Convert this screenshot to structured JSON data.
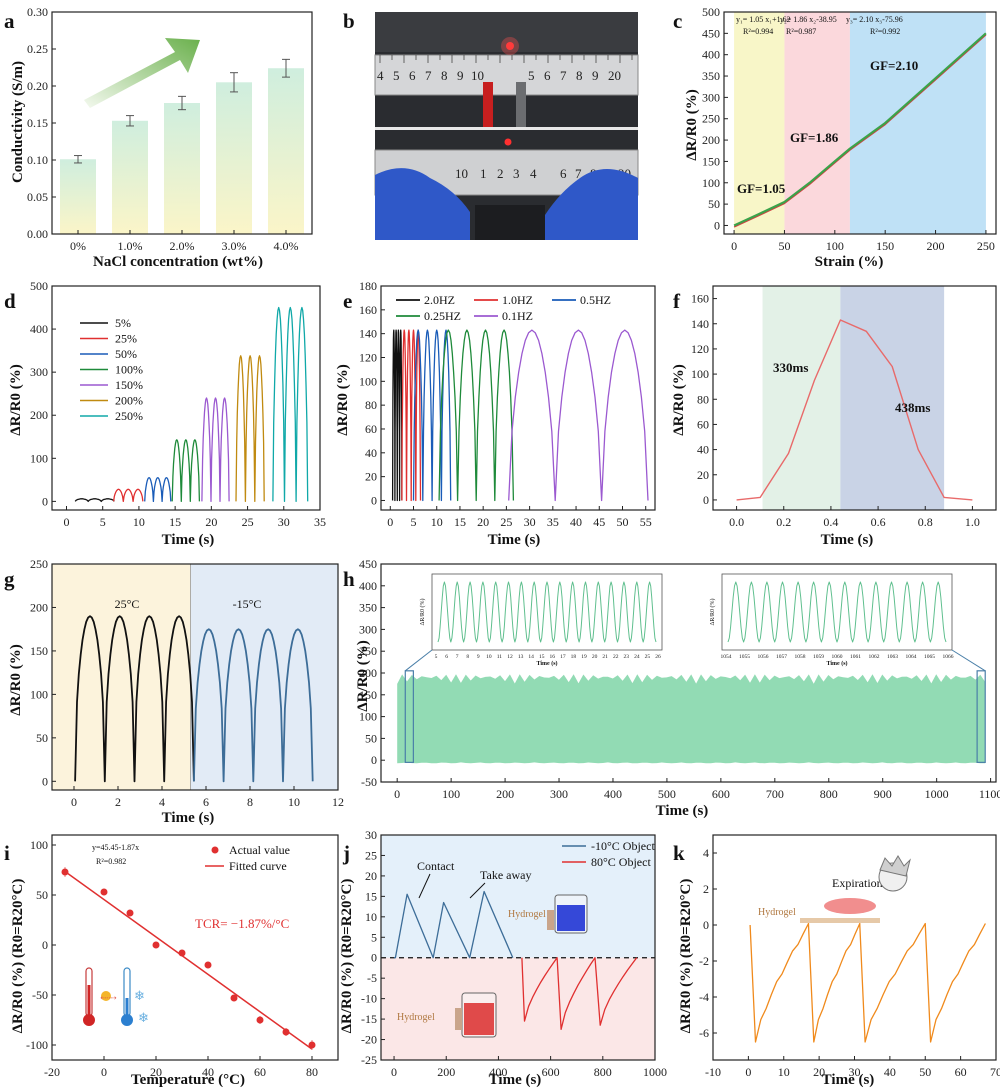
{
  "panel_labels": {
    "a": "a",
    "b": "b",
    "c": "c",
    "d": "d",
    "e": "e",
    "f": "f",
    "g": "g",
    "h": "h",
    "i": "i",
    "j": "j",
    "k": "k"
  },
  "chart_data": [
    {
      "panel": "a",
      "type": "bar",
      "categories": [
        "0%",
        "1.0%",
        "2.0%",
        "3.0%",
        "4.0%"
      ],
      "values": [
        0.101,
        0.153,
        0.177,
        0.205,
        0.224
      ],
      "errors": [
        0.005,
        0.007,
        0.009,
        0.013,
        0.012
      ],
      "xlabel": "NaCl concentration (wt%)",
      "ylabel": "Conductivity (S/m)",
      "ylim": [
        0.0,
        0.3
      ],
      "yticks": [
        "0.00",
        "0.05",
        "0.10",
        "0.15",
        "0.20",
        "0.25",
        "0.30"
      ],
      "colors": {
        "bar_top": "#cfeede",
        "bar_bottom": "#fbf5c8",
        "arrow": "#6ab04c",
        "error": "#555555"
      }
    },
    {
      "panel": "c",
      "type": "line",
      "x": [
        0,
        25,
        50,
        75,
        100,
        115,
        150,
        200,
        250
      ],
      "y": [
        0,
        27,
        55,
        100,
        150,
        180,
        240,
        345,
        450
      ],
      "xlabel": "Strain (%)",
      "ylabel": "ΔR/R0 (%)",
      "xlim": [
        -10,
        260
      ],
      "ylim": [
        -20,
        500
      ],
      "xticks": [
        "0",
        "50",
        "100",
        "150",
        "200",
        "250"
      ],
      "yticks": [
        "0",
        "50",
        "100",
        "150",
        "200",
        "250",
        "300",
        "350",
        "400",
        "450",
        "500"
      ],
      "regions": [
        {
          "x0": 0,
          "x1": 50,
          "color": "#f8f6c8"
        },
        {
          "x0": 50,
          "x1": 115,
          "color": "#fbd8dc"
        },
        {
          "x0": 115,
          "x1": 250,
          "color": "#bfe1f6"
        }
      ],
      "fits": [
        {
          "eq": "y₁= 1.05 x₁+1.62",
          "r2": "R²=0.994"
        },
        {
          "eq": "y₂= 1.86 x₂-38.95",
          "r2": "R²=0.987"
        },
        {
          "eq": "y₃= 2.10 x₃-75.96",
          "r2": "R²=0.992"
        }
      ],
      "gf_labels": [
        "GF=1.05",
        "GF=1.86",
        "GF=2.10"
      ],
      "colors": {
        "line": "#3aa34a",
        "line2": "#d04040"
      }
    },
    {
      "panel": "d",
      "type": "line",
      "xlabel": "Time (s)",
      "ylabel": "ΔR/R0 (%)",
      "xlim": [
        -2,
        35
      ],
      "ylim": [
        -20,
        500
      ],
      "xticks": [
        "0",
        "5",
        "10",
        "15",
        "20",
        "25",
        "30",
        "35"
      ],
      "yticks": [
        "0",
        "100",
        "200",
        "300",
        "400",
        "500"
      ],
      "series": [
        {
          "name": "5%",
          "amp": 6,
          "start": 1.2,
          "period": 1.8,
          "color": "#111111"
        },
        {
          "name": "25%",
          "amp": 28,
          "start": 6.5,
          "period": 1.35,
          "color": "#e03030"
        },
        {
          "name": "50%",
          "amp": 55,
          "start": 10.8,
          "period": 1.2,
          "color": "#1a5cb8"
        },
        {
          "name": "100%",
          "amp": 143,
          "start": 14.6,
          "period": 1.25,
          "color": "#1e8a3a"
        },
        {
          "name": "150%",
          "amp": 240,
          "start": 18.7,
          "period": 1.25,
          "color": "#9b59d0"
        },
        {
          "name": "200%",
          "amp": 338,
          "start": 23.4,
          "period": 1.3,
          "color": "#c08a10"
        },
        {
          "name": "250%",
          "amp": 450,
          "start": 28.5,
          "period": 1.6,
          "color": "#10a8a8"
        }
      ]
    },
    {
      "panel": "e",
      "type": "line",
      "xlabel": "Time (s)",
      "ylabel": "ΔR/R0 (%)",
      "xlim": [
        -2,
        57
      ],
      "ylim": [
        -8,
        180
      ],
      "xticks": [
        "0",
        "5",
        "10",
        "15",
        "20",
        "25",
        "30",
        "35",
        "40",
        "45",
        "50",
        "55"
      ],
      "yticks": [
        "0",
        "20",
        "40",
        "60",
        "80",
        "100",
        "120",
        "140",
        "160",
        "180"
      ],
      "series": [
        {
          "name": "2.0HZ",
          "freq": 2.0,
          "start": 0.5,
          "cycles": 4,
          "amp": 143,
          "color": "#111111"
        },
        {
          "name": "1.0HZ",
          "freq": 1.0,
          "start": 2.5,
          "cycles": 4,
          "amp": 143,
          "color": "#e03030"
        },
        {
          "name": "0.5HZ",
          "freq": 0.5,
          "start": 5.0,
          "cycles": 4,
          "amp": 143,
          "color": "#1a5cb8"
        },
        {
          "name": "0.25HZ",
          "freq": 0.25,
          "start": 10.5,
          "cycles": 4,
          "amp": 143,
          "color": "#1e8a3a"
        },
        {
          "name": "0.1HZ",
          "freq": 0.1,
          "start": 25.5,
          "cycles": 3,
          "amp": 143,
          "color": "#9b59d0"
        }
      ]
    },
    {
      "panel": "f",
      "type": "line",
      "x": [
        0.0,
        0.1,
        0.22,
        0.33,
        0.44,
        0.55,
        0.66,
        0.77,
        0.88,
        1.0
      ],
      "y": [
        0,
        2,
        37,
        95,
        143,
        134,
        106,
        40,
        2,
        0
      ],
      "xlabel": "Time (s)",
      "ylabel": "ΔR/R0 (%)",
      "xlim": [
        -0.1,
        1.1
      ],
      "ylim": [
        -8,
        170
      ],
      "xticks": [
        "0.0",
        "0.2",
        "0.4",
        "0.6",
        "0.8",
        "1.0"
      ],
      "yticks": [
        "0",
        "20",
        "40",
        "60",
        "80",
        "100",
        "120",
        "140",
        "160"
      ],
      "regions": [
        {
          "x0": 0.11,
          "x1": 0.44,
          "color": "#e3f1e7"
        },
        {
          "x0": 0.44,
          "x1": 0.88,
          "color": "#c9d3e6"
        }
      ],
      "annotations": [
        "330ms",
        "438ms"
      ],
      "colors": {
        "line": "#e86a6a"
      }
    },
    {
      "panel": "g",
      "type": "line",
      "xlabel": "Time (s)",
      "ylabel": "ΔR/R0 (%)",
      "xlim": [
        -1,
        12
      ],
      "ylim": [
        -10,
        250
      ],
      "xticks": [
        "0",
        "2",
        "4",
        "6",
        "8",
        "10",
        "12"
      ],
      "yticks": [
        "0",
        "50",
        "100",
        "150",
        "200",
        "250"
      ],
      "regions": [
        {
          "x0": -1,
          "x1": 5.3,
          "color": "#fcf3dc",
          "label": "25°C"
        },
        {
          "x0": 5.3,
          "x1": 12,
          "color": "#e2ebf6",
          "label": "-15°C"
        }
      ],
      "series": [
        {
          "start": 0.05,
          "period": 1.35,
          "cycles": 4,
          "amp": 190,
          "color": "#111111"
        },
        {
          "start": 5.45,
          "period": 1.35,
          "cycles": 4,
          "amp": 175,
          "color": "#3d6d98"
        }
      ]
    },
    {
      "panel": "h",
      "type": "area",
      "xlabel": "Time (s)",
      "ylabel": "ΔR/R0 (%)",
      "xlim": [
        -30,
        1110
      ],
      "ylim": [
        -50,
        450
      ],
      "xticks": [
        "0",
        "100",
        "200",
        "300",
        "400",
        "500",
        "600",
        "700",
        "800",
        "900",
        "1000",
        "1100"
      ],
      "yticks": [
        "-50",
        "0",
        "50",
        "100",
        "150",
        "200",
        "250",
        "300",
        "350",
        "400",
        "450"
      ],
      "band": {
        "x0": 0,
        "x1": 1090,
        "y0": -5,
        "y1": 200
      },
      "inset1": {
        "xticks": [
          "5",
          "6",
          "7",
          "8",
          "9",
          "10",
          "11",
          "12",
          "13",
          "14",
          "15",
          "16",
          "17",
          "18",
          "19",
          "20",
          "21",
          "22",
          "23",
          "24",
          "25",
          "26"
        ],
        "ylabel": "ΔR/R0 (%)",
        "xlabel": "Time (s)"
      },
      "inset2": {
        "xticks": [
          "1054",
          "1055",
          "1056",
          "1057",
          "1058",
          "1059",
          "1060",
          "1061",
          "1062",
          "1063",
          "1064",
          "1065",
          "1066"
        ],
        "ylabel": "ΔR/R0 (%)",
        "xlabel": "Time (s)"
      },
      "colors": {
        "fill": "#92dbb4",
        "box": "#4a7fa8"
      }
    },
    {
      "panel": "i",
      "type": "scatter",
      "x": [
        -15,
        0,
        10,
        20,
        30,
        40,
        50,
        60,
        70,
        80
      ],
      "y": [
        73,
        53,
        32,
        0,
        -8,
        -20,
        -53,
        -75,
        -87,
        -100
      ],
      "errors": [
        5,
        3,
        3,
        2,
        2,
        2,
        3,
        4,
        4,
        5
      ],
      "fit": {
        "slope": -1.87,
        "intercept": 45.45
      },
      "xlabel": "Temperature (°C)",
      "ylabel": "ΔR/R0 (%) (R0=R20°C)",
      "xlim": [
        -20,
        90
      ],
      "ylim": [
        -115,
        110
      ],
      "xticks": [
        "-20",
        "0",
        "20",
        "40",
        "60",
        "80"
      ],
      "yticks": [
        "-100",
        "-50",
        "0",
        "50",
        "100"
      ],
      "legend": [
        "Actual value",
        "Fitted curve"
      ],
      "equation": "y=45.45-1.87x",
      "r2": "R²=0.982",
      "tcr": "TCR= −1.87%/°C",
      "colors": {
        "point": "#e03030",
        "fit": "#e03030"
      }
    },
    {
      "panel": "j",
      "type": "line",
      "xlabel": "Time (s)",
      "ylabel": "ΔR/R0 (%) (R0=R20°C)",
      "xlim": [
        -50,
        1000
      ],
      "ylim": [
        -25,
        30
      ],
      "xticks": [
        "0",
        "200",
        "400",
        "600",
        "800",
        "1000"
      ],
      "yticks": [
        "-25",
        "-20",
        "-15",
        "-10",
        "-5",
        "0",
        "5",
        "10",
        "15",
        "20",
        "25",
        "30"
      ],
      "legend": [
        "-10°C Object",
        "80°C Object"
      ],
      "annotations": [
        "Contact",
        "Take away",
        "Hydrogel",
        "Hydrogel"
      ],
      "cold_peaks": [
        {
          "t0": 5,
          "tp": 50,
          "t1": 150,
          "p": 15.5
        },
        {
          "t0": 150,
          "tp": 190,
          "t1": 290,
          "p": 13.5
        },
        {
          "t0": 290,
          "tp": 345,
          "t1": 455,
          "p": 16.2
        }
      ],
      "hot_peaks": [
        {
          "t0": 490,
          "tp": 500,
          "t1": 625,
          "p": -15.5
        },
        {
          "t0": 625,
          "tp": 640,
          "t1": 770,
          "p": -17.5
        },
        {
          "t0": 770,
          "tp": 790,
          "t1": 930,
          "p": -16.5
        }
      ],
      "colors": {
        "cold": "#3d6d98",
        "hot": "#e03030",
        "cold_bg": "#e4f0fa",
        "hot_bg": "#fbe7e7"
      }
    },
    {
      "panel": "k",
      "type": "line",
      "xlabel": "Time (s)",
      "ylabel": "ΔR/R0 (%) (R0=R20°C)",
      "xlim": [
        -10,
        70
      ],
      "ylim": [
        -7.5,
        5
      ],
      "xticks": [
        "-10",
        "0",
        "10",
        "20",
        "30",
        "40",
        "50",
        "60",
        "70"
      ],
      "yticks": [
        "-6",
        "-4",
        "-2",
        "0",
        "2",
        "4"
      ],
      "annotations": [
        "Expiration",
        "Hydrogel"
      ],
      "cycles": [
        {
          "t0": 0.5,
          "tm": 2,
          "t1": 17
        },
        {
          "t0": 17,
          "tm": 18.5,
          "t1": 31.5
        },
        {
          "t0": 31.5,
          "tm": 33,
          "t1": 50
        },
        {
          "t0": 50,
          "tm": 51.5,
          "t1": 67
        }
      ],
      "min": -6.5,
      "colors": {
        "line": "#f08a1c"
      }
    }
  ]
}
